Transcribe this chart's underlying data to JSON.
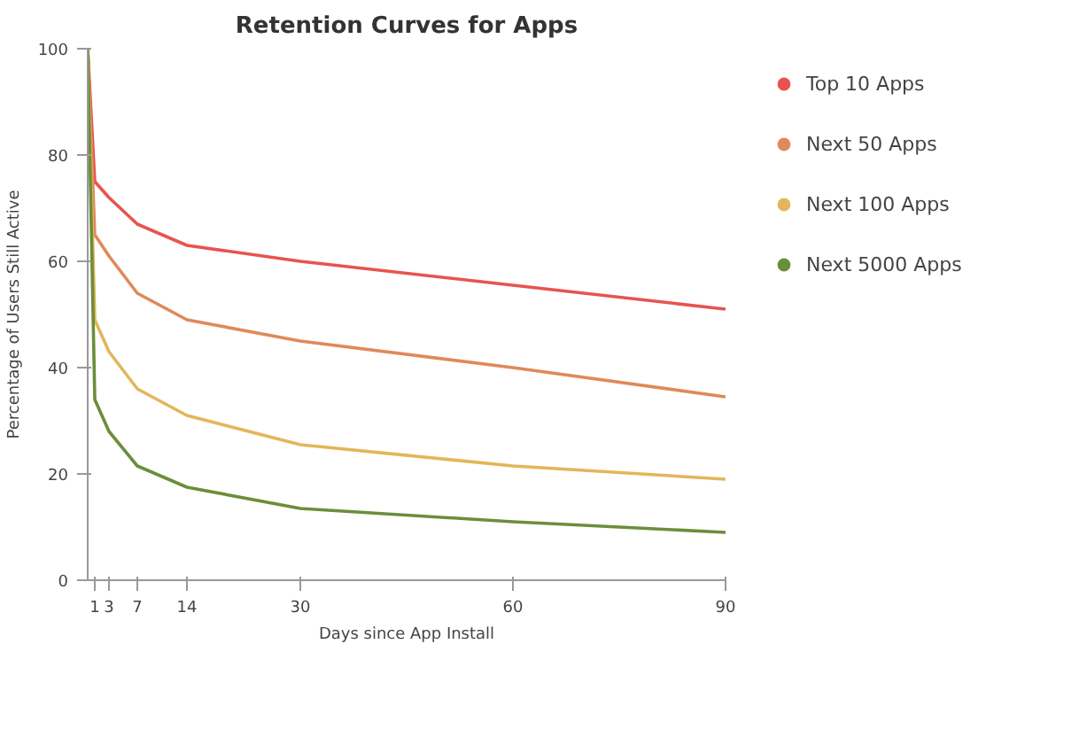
{
  "chart_data": {
    "type": "line",
    "title": "Retention Curves for Apps",
    "xlabel": "Days since App Install",
    "ylabel": "Percentage of Users Still Active",
    "x": [
      0,
      1,
      3,
      7,
      14,
      30,
      60,
      90
    ],
    "series": [
      {
        "name": "Top 10 Apps",
        "color": "#e8534f",
        "values": [
          100,
          75,
          72,
          67,
          63,
          60,
          55.5,
          51
        ]
      },
      {
        "name": "Next 50 Apps",
        "color": "#e0895a",
        "values": [
          100,
          65,
          61,
          54,
          49,
          45,
          40,
          34.5
        ]
      },
      {
        "name": "Next 100 Apps",
        "color": "#e3b65a",
        "values": [
          100,
          49,
          43,
          36,
          31,
          25.5,
          21.5,
          19
        ]
      },
      {
        "name": "Next 5000 Apps",
        "color": "#6b8e3a",
        "values": [
          100,
          34,
          28,
          21.5,
          17.5,
          13.5,
          11,
          9
        ]
      }
    ],
    "xlim": [
      0,
      90
    ],
    "xticks": [
      1,
      3,
      7,
      14,
      30,
      60,
      90
    ],
    "ylim": [
      0,
      100
    ],
    "yticks": [
      0,
      20,
      40,
      60,
      80,
      100
    ],
    "grid": false,
    "legend": "right",
    "marker": "none",
    "line_style": "solid"
  }
}
